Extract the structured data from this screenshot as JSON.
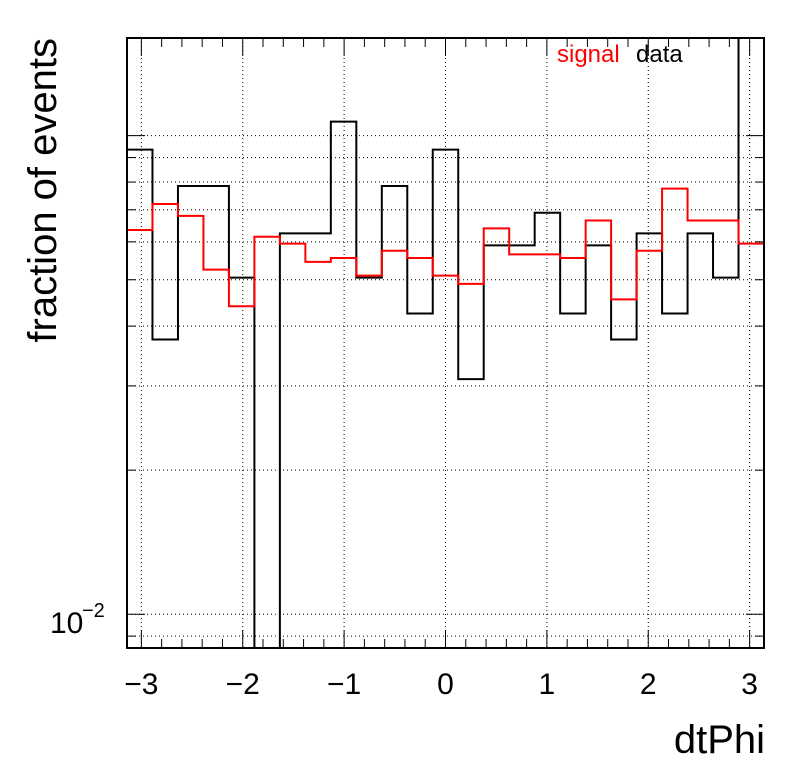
{
  "chart_data": {
    "type": "line",
    "title": "",
    "xlabel": "dtPhi",
    "ylabel": "fraction of events",
    "xlim": [
      -3.1416,
      3.1416
    ],
    "ylim": [
      0.0085,
      0.16
    ],
    "y_scale": "log",
    "grid": true,
    "legend_position": "top-right",
    "x_ticks": [
      -3,
      -2,
      -1,
      0,
      1,
      2,
      3
    ],
    "x_tick_labels": [
      "−3",
      "−2",
      "−1",
      "0",
      "1",
      "2",
      "3"
    ],
    "y_tick_label_base": "10",
    "y_tick_label_exp": "−2",
    "y_tick_value": 0.01,
    "bin_edges": [
      -3.1416,
      -2.8903,
      -2.6389,
      -2.3876,
      -2.1363,
      -1.885,
      -1.6336,
      -1.3823,
      -1.131,
      -0.8796,
      -0.6283,
      -0.377,
      -0.1257,
      0.1257,
      0.377,
      0.6283,
      0.8796,
      1.131,
      1.3823,
      1.6336,
      1.885,
      2.1363,
      2.3876,
      2.6389,
      2.8903,
      3.1416
    ],
    "series": [
      {
        "name": "signal",
        "color": "#ff0000",
        "values": [
          0.0635,
          0.072,
          0.068,
          0.0525,
          0.044,
          0.0615,
          0.0595,
          0.0545,
          0.0555,
          0.051,
          0.0575,
          0.0555,
          0.051,
          0.049,
          0.064,
          0.0565,
          0.0565,
          0.0555,
          0.0665,
          0.0455,
          0.0575,
          0.0775,
          0.0665,
          0.0665,
          0.0595
        ]
      },
      {
        "name": "data",
        "color": "#000000",
        "values": [
          0.0935,
          0.0375,
          0.0785,
          0.0785,
          0.0505,
          0.0085,
          0.0625,
          0.0625,
          0.107,
          0.0505,
          0.0785,
          0.0425,
          0.0935,
          0.031,
          0.059,
          0.059,
          0.069,
          0.0425,
          0.059,
          0.0375,
          0.0625,
          0.0425,
          0.0625,
          0.0505,
          0.16
        ]
      }
    ],
    "legend": [
      {
        "label": "signal",
        "color": "#ff0000"
      },
      {
        "label": "data",
        "color": "#000000"
      }
    ]
  }
}
